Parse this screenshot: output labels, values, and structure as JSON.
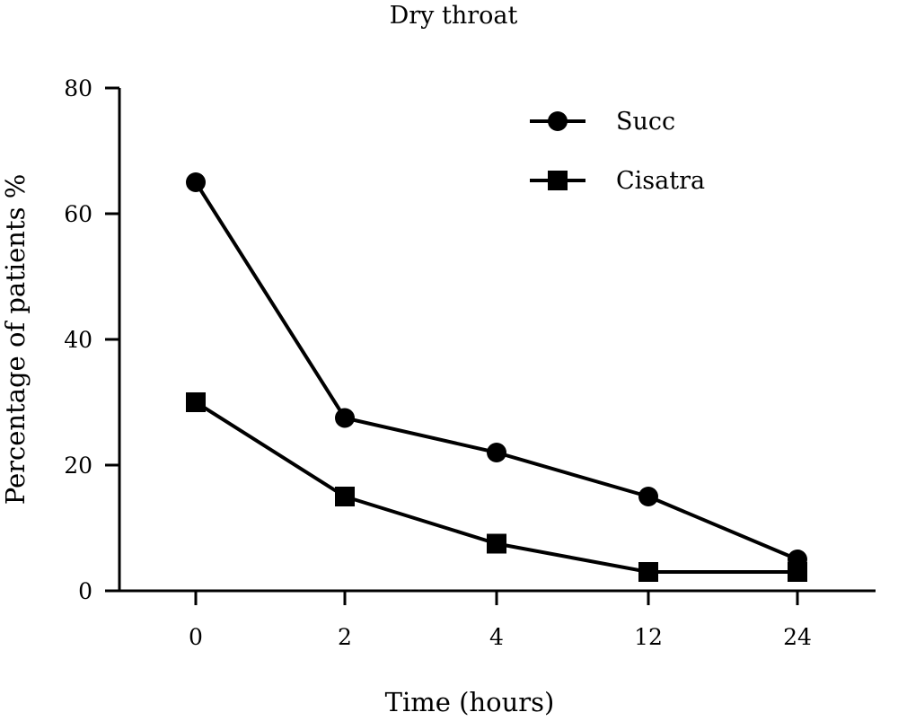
{
  "chart_data": {
    "type": "line",
    "title": "Dry throat",
    "xlabel": "Time (hours)",
    "ylabel": "Percentage of patients %",
    "categories": [
      "0",
      "2",
      "4",
      "12",
      "24"
    ],
    "ylim": [
      0,
      80
    ],
    "yticks": [
      "0",
      "20",
      "40",
      "60",
      "80"
    ],
    "grid": false,
    "legend_position": "top-right",
    "series": [
      {
        "name": "Succ",
        "marker": "circle",
        "color": "#000000",
        "values": [
          65,
          27.5,
          22,
          15,
          5
        ]
      },
      {
        "name": "Cisatra",
        "marker": "square",
        "color": "#000000",
        "values": [
          30,
          15,
          7.5,
          3,
          3
        ]
      }
    ]
  }
}
